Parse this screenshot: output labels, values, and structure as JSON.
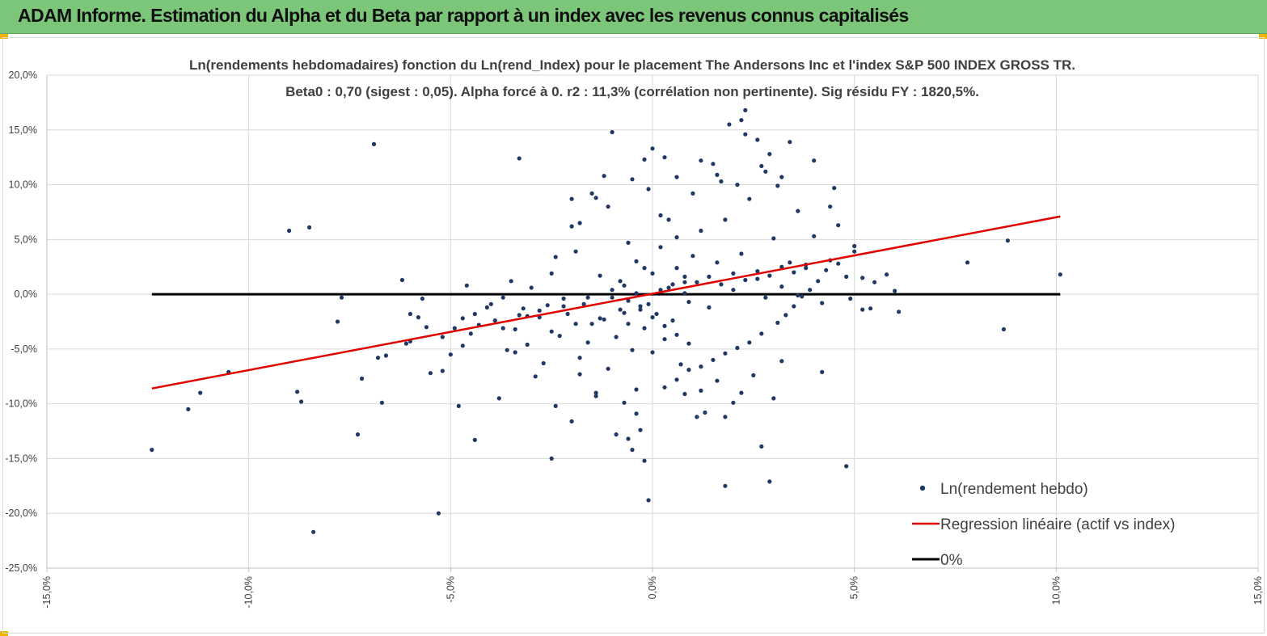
{
  "header": {
    "title": "ADAM Informe. Estimation du Alpha et du Beta par rapport à un index avec les revenus connus capitalisés"
  },
  "colors": {
    "banner": "#7cc67a",
    "accent": "#f0b400",
    "points": "#203864",
    "regression": "#e00000",
    "zero_line": "#000000",
    "grid": "#d9d9d9"
  },
  "chart_data": {
    "type": "scatter",
    "title_line1": "Ln(rendements hebdomadaires) fonction du Ln(rend_Index) pour le placement The Andersons Inc et l'index S&P 500 INDEX GROSS TR.",
    "title_line2": "Beta0 : 0,70 (sigest : 0,05).  Alpha forcé à 0. r2 : 11,3% (corrélation non pertinente). Sig résidu FY : 1820,5%.",
    "xlim": [
      -0.15,
      0.15
    ],
    "ylim": [
      -0.25,
      0.2
    ],
    "x_ticks": [
      {
        "value": -0.15,
        "label": "-15,0%"
      },
      {
        "value": -0.1,
        "label": "-10,0%"
      },
      {
        "value": -0.05,
        "label": "-5,0%"
      },
      {
        "value": 0.0,
        "label": "0,0%"
      },
      {
        "value": 0.05,
        "label": "5,0%"
      },
      {
        "value": 0.1,
        "label": "10,0%"
      },
      {
        "value": 0.15,
        "label": "15,0%"
      }
    ],
    "y_ticks": [
      {
        "value": 0.2,
        "label": "20,0%"
      },
      {
        "value": 0.15,
        "label": "15,0%"
      },
      {
        "value": 0.1,
        "label": "10,0%"
      },
      {
        "value": 0.05,
        "label": "5,0%"
      },
      {
        "value": 0.0,
        "label": "0,0%"
      },
      {
        "value": -0.05,
        "label": "-5,0%"
      },
      {
        "value": -0.1,
        "label": "-10,0%"
      },
      {
        "value": -0.15,
        "label": "-15,0%"
      },
      {
        "value": -0.2,
        "label": "-20,0%"
      },
      {
        "value": -0.25,
        "label": "-25,0%"
      }
    ],
    "grid": true,
    "legend_position": "bottom-right",
    "series": [
      {
        "name": "Ln(rendement hebdo)",
        "kind": "scatter",
        "points": [
          [
            -0.124,
            -0.142
          ],
          [
            -0.115,
            -0.105
          ],
          [
            -0.112,
            -0.09
          ],
          [
            -0.105,
            -0.071
          ],
          [
            -0.085,
            0.061
          ],
          [
            -0.084,
            -0.217
          ],
          [
            -0.088,
            -0.089
          ],
          [
            -0.087,
            -0.098
          ],
          [
            -0.078,
            -0.025
          ],
          [
            -0.077,
            -0.003
          ],
          [
            -0.073,
            -0.128
          ],
          [
            -0.072,
            -0.077
          ],
          [
            -0.069,
            0.137
          ],
          [
            -0.068,
            -0.058
          ],
          [
            -0.067,
            -0.099
          ],
          [
            -0.066,
            -0.056
          ],
          [
            -0.061,
            -0.045
          ],
          [
            -0.062,
            0.013
          ],
          [
            -0.06,
            -0.018
          ],
          [
            -0.058,
            -0.021
          ],
          [
            -0.057,
            -0.004
          ],
          [
            -0.055,
            -0.072
          ],
          [
            -0.053,
            -0.2
          ],
          [
            -0.052,
            -0.07
          ],
          [
            -0.05,
            -0.055
          ],
          [
            -0.049,
            -0.031
          ],
          [
            -0.048,
            -0.102
          ],
          [
            -0.047,
            -0.047
          ],
          [
            -0.046,
            0.008
          ],
          [
            -0.045,
            -0.036
          ],
          [
            -0.044,
            -0.133
          ],
          [
            -0.043,
            -0.028
          ],
          [
            -0.041,
            -0.012
          ],
          [
            -0.039,
            -0.024
          ],
          [
            -0.038,
            -0.095
          ],
          [
            -0.037,
            -0.031
          ],
          [
            -0.036,
            -0.051
          ],
          [
            -0.035,
            0.012
          ],
          [
            -0.034,
            -0.053
          ],
          [
            -0.033,
            -0.019
          ],
          [
            -0.032,
            -0.013
          ],
          [
            -0.031,
            -0.046
          ],
          [
            -0.03,
            0.006
          ],
          [
            -0.029,
            -0.075
          ],
          [
            -0.028,
            -0.021
          ],
          [
            -0.027,
            -0.063
          ],
          [
            -0.026,
            -0.01
          ],
          [
            -0.025,
            -0.15
          ],
          [
            -0.024,
            0.034
          ],
          [
            -0.024,
            -0.102
          ],
          [
            -0.023,
            -0.038
          ],
          [
            -0.022,
            -0.004
          ],
          [
            -0.021,
            -0.018
          ],
          [
            -0.02,
            -0.116
          ],
          [
            -0.019,
            0.039
          ],
          [
            -0.018,
            -0.058
          ],
          [
            -0.017,
            -0.009
          ],
          [
            -0.016,
            -0.044
          ],
          [
            -0.015,
            -0.027
          ],
          [
            -0.014,
            -0.093
          ],
          [
            -0.013,
            0.017
          ],
          [
            -0.012,
            -0.023
          ],
          [
            -0.011,
            -0.068
          ],
          [
            -0.01,
            -0.003
          ],
          [
            -0.009,
            -0.039
          ],
          [
            -0.008,
            -0.014
          ],
          [
            -0.007,
            0.008
          ],
          [
            -0.006,
            -0.027
          ],
          [
            -0.005,
            -0.051
          ],
          [
            -0.004,
            -0.087
          ],
          [
            -0.003,
            -0.011
          ],
          [
            -0.002,
            -0.031
          ],
          [
            -0.001,
            0.096
          ],
          [
            0.0,
            -0.053
          ],
          [
            0.001,
            -0.018
          ],
          [
            0.002,
            0.072
          ],
          [
            0.003,
            -0.041
          ],
          [
            0.004,
            0.068
          ],
          [
            0.005,
            -0.024
          ],
          [
            0.006,
            0.024
          ],
          [
            0.007,
            -0.064
          ],
          [
            0.008,
            0.016
          ],
          [
            0.009,
            -0.007
          ],
          [
            0.01,
            0.092
          ],
          [
            -0.008,
            0.012
          ],
          [
            -0.006,
            0.047
          ],
          [
            -0.004,
            0.03
          ],
          [
            -0.002,
            0.024
          ],
          [
            0.0,
            0.019
          ],
          [
            0.002,
            0.043
          ],
          [
            0.004,
            0.006
          ],
          [
            0.006,
            0.052
          ],
          [
            0.008,
            0.011
          ],
          [
            0.01,
            0.035
          ],
          [
            0.012,
            0.058
          ],
          [
            0.014,
            -0.012
          ],
          [
            0.016,
            0.029
          ],
          [
            0.018,
            0.068
          ],
          [
            0.02,
            0.004
          ],
          [
            0.022,
            0.037
          ],
          [
            0.024,
            0.087
          ],
          [
            0.026,
            0.014
          ],
          [
            0.028,
            -0.003
          ],
          [
            0.03,
            0.051
          ],
          [
            0.032,
            0.007
          ],
          [
            0.034,
            0.029
          ],
          [
            0.036,
            -0.001
          ],
          [
            0.038,
            0.024
          ],
          [
            0.04,
            0.053
          ],
          [
            0.042,
            -0.008
          ],
          [
            0.044,
            0.031
          ],
          [
            0.046,
            0.063
          ],
          [
            0.048,
            0.016
          ],
          [
            0.05,
            0.039
          ],
          [
            0.052,
            -0.014
          ],
          [
            0.05,
            0.044
          ],
          [
            -0.06,
            -0.043
          ],
          [
            -0.056,
            -0.03
          ],
          [
            -0.052,
            -0.039
          ],
          [
            -0.047,
            -0.022
          ],
          [
            -0.044,
            -0.018
          ],
          [
            -0.04,
            -0.009
          ],
          [
            -0.037,
            -0.003
          ],
          [
            -0.034,
            -0.032
          ],
          [
            -0.031,
            -0.02
          ],
          [
            -0.028,
            -0.015
          ],
          [
            -0.025,
            -0.034
          ],
          [
            -0.022,
            -0.011
          ],
          [
            -0.019,
            -0.027
          ],
          [
            -0.016,
            -0.003
          ],
          [
            -0.013,
            -0.022
          ],
          [
            -0.01,
            0.004
          ],
          [
            -0.007,
            -0.017
          ],
          [
            -0.004,
            0.001
          ],
          [
            -0.001,
            -0.009
          ],
          [
            0.002,
            0.004
          ],
          [
            0.005,
            0.009
          ],
          [
            0.008,
            0.001
          ],
          [
            0.011,
            0.011
          ],
          [
            0.014,
            0.016
          ],
          [
            0.017,
            0.009
          ],
          [
            0.02,
            0.019
          ],
          [
            0.023,
            0.013
          ],
          [
            0.026,
            0.021
          ],
          [
            0.029,
            0.017
          ],
          [
            0.032,
            0.025
          ],
          [
            0.035,
            0.02
          ],
          [
            0.038,
            0.027
          ],
          [
            -0.09,
            0.058
          ],
          [
            -0.02,
            0.062
          ],
          [
            -0.015,
            0.092
          ],
          [
            -0.012,
            0.108
          ],
          [
            -0.01,
            0.148
          ],
          [
            -0.005,
            0.105
          ],
          [
            -0.002,
            0.123
          ],
          [
            0.0,
            0.133
          ],
          [
            0.003,
            0.125
          ],
          [
            0.006,
            0.107
          ],
          [
            0.012,
            0.122
          ],
          [
            0.015,
            0.119
          ],
          [
            0.016,
            0.109
          ],
          [
            0.017,
            0.103
          ],
          [
            0.019,
            0.155
          ],
          [
            0.021,
            0.1
          ],
          [
            0.022,
            0.159
          ],
          [
            0.023,
            0.168
          ],
          [
            0.023,
            0.146
          ],
          [
            0.026,
            0.141
          ],
          [
            0.027,
            0.117
          ],
          [
            0.028,
            0.112
          ],
          [
            0.029,
            0.128
          ],
          [
            0.031,
            0.099
          ],
          [
            0.032,
            0.107
          ],
          [
            0.034,
            0.139
          ],
          [
            0.036,
            0.076
          ],
          [
            0.04,
            0.122
          ],
          [
            0.045,
            0.097
          ],
          [
            0.044,
            0.08
          ],
          [
            -0.033,
            0.124
          ],
          [
            -0.025,
            0.019
          ],
          [
            -0.02,
            0.087
          ],
          [
            -0.018,
            0.065
          ],
          [
            -0.014,
            0.088
          ],
          [
            -0.011,
            0.08
          ],
          [
            0.008,
            -0.091
          ],
          [
            0.011,
            -0.112
          ],
          [
            0.013,
            -0.108
          ],
          [
            0.012,
            -0.088
          ],
          [
            0.016,
            -0.079
          ],
          [
            0.018,
            -0.112
          ],
          [
            0.02,
            -0.099
          ],
          [
            0.022,
            -0.09
          ],
          [
            0.025,
            -0.074
          ],
          [
            0.027,
            -0.139
          ],
          [
            0.029,
            -0.171
          ],
          [
            0.03,
            -0.095
          ],
          [
            0.032,
            -0.061
          ],
          [
            0.018,
            -0.175
          ],
          [
            0.048,
            -0.157
          ],
          [
            0.042,
            -0.071
          ],
          [
            -0.002,
            -0.152
          ],
          [
            -0.005,
            -0.142
          ],
          [
            -0.006,
            -0.132
          ],
          [
            -0.009,
            -0.128
          ],
          [
            -0.001,
            -0.188
          ],
          [
            -0.003,
            -0.124
          ],
          [
            -0.004,
            -0.109
          ],
          [
            -0.007,
            -0.099
          ],
          [
            0.003,
            -0.085
          ],
          [
            0.006,
            -0.078
          ],
          [
            0.009,
            -0.069
          ],
          [
            -0.014,
            -0.09
          ],
          [
            -0.018,
            -0.073
          ],
          [
            0.061,
            -0.016
          ],
          [
            0.054,
            -0.013
          ],
          [
            0.049,
            -0.004
          ],
          [
            0.052,
            0.015
          ],
          [
            0.055,
            0.011
          ],
          [
            0.058,
            0.018
          ],
          [
            0.06,
            0.003
          ],
          [
            0.078,
            0.029
          ],
          [
            0.088,
            0.049
          ],
          [
            0.087,
            -0.032
          ],
          [
            0.101,
            0.018
          ],
          [
            0.046,
            0.028
          ],
          [
            0.043,
            0.022
          ],
          [
            0.041,
            0.012
          ],
          [
            0.039,
            0.004
          ],
          [
            0.037,
            -0.002
          ],
          [
            0.035,
            -0.011
          ],
          [
            0.033,
            -0.019
          ],
          [
            0.031,
            -0.026
          ],
          [
            0.027,
            -0.036
          ],
          [
            0.024,
            -0.044
          ],
          [
            0.021,
            -0.049
          ],
          [
            0.018,
            -0.054
          ],
          [
            0.015,
            -0.06
          ],
          [
            0.012,
            -0.066
          ],
          [
            0.009,
            -0.045
          ],
          [
            0.006,
            -0.037
          ],
          [
            0.003,
            -0.029
          ],
          [
            0.0,
            -0.021
          ],
          [
            -0.003,
            -0.014
          ],
          [
            -0.006,
            -0.006
          ]
        ]
      },
      {
        "name": "Regression linéaire (actif vs index)",
        "kind": "line",
        "x": [
          -0.124,
          0.101
        ],
        "y": [
          -0.086,
          0.071
        ]
      },
      {
        "name": "0%",
        "kind": "line",
        "x": [
          -0.124,
          0.101
        ],
        "y": [
          0.0,
          0.0
        ]
      }
    ]
  }
}
